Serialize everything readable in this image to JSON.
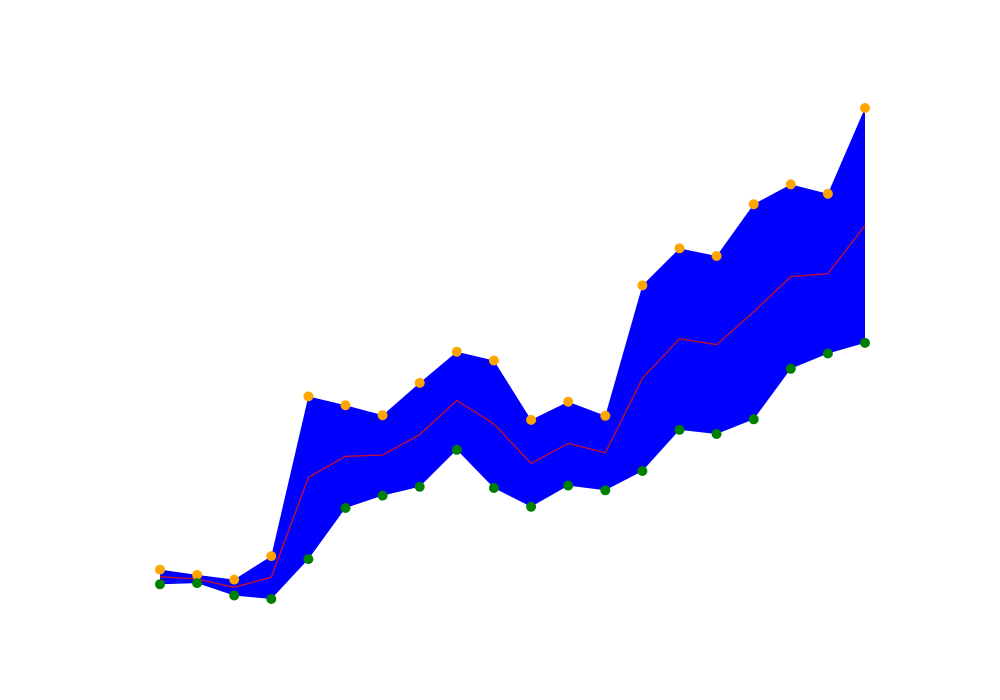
{
  "chart_data": {
    "type": "area",
    "x": [
      0,
      1,
      2,
      3,
      4,
      5,
      6,
      7,
      8,
      9,
      10,
      11,
      12,
      13,
      14,
      15,
      16,
      17,
      18,
      19
    ],
    "series": [
      {
        "role": "upper",
        "values": [
          1.0,
          0.91,
          0.83,
          1.23,
          3.95,
          3.8,
          3.63,
          4.18,
          4.71,
          4.56,
          3.55,
          3.86,
          3.62,
          5.84,
          6.47,
          6.34,
          7.22,
          7.56,
          7.4,
          8.86
        ],
        "color": "#ffa500"
      },
      {
        "role": "lower",
        "values": [
          0.75,
          0.77,
          0.56,
          0.5,
          1.18,
          2.05,
          2.26,
          2.41,
          3.04,
          2.39,
          2.07,
          2.43,
          2.35,
          2.68,
          3.38,
          3.31,
          3.56,
          4.42,
          4.68,
          4.86
        ],
        "color": "#008000"
      },
      {
        "role": "middle",
        "values": [
          0.88,
          0.84,
          0.7,
          0.87,
          2.57,
          2.93,
          2.95,
          3.3,
          3.88,
          3.48,
          2.81,
          3.15,
          2.99,
          4.26,
          4.93,
          4.83,
          5.39,
          5.99,
          6.04,
          6.86
        ],
        "color": "#c8102e"
      }
    ],
    "fill_color": "#0000ff",
    "xlim": [
      0,
      19
    ],
    "ylim": [
      0.5,
      8.86
    ],
    "axes_visible": false,
    "grid": false,
    "legend": "none",
    "title": "",
    "xlabel": "",
    "ylabel": ""
  }
}
